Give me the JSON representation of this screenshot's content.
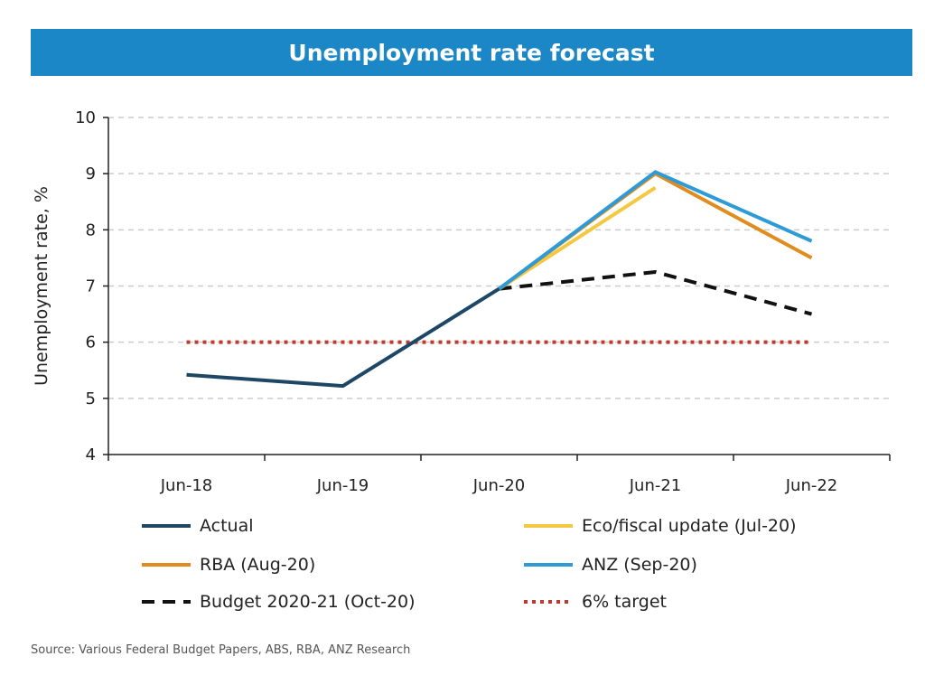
{
  "chart_data": {
    "type": "line",
    "title": "Unemployment rate forecast",
    "xlabel": "",
    "ylabel": "Unemployment  rate, %",
    "categories": [
      "Jun-18",
      "Jun-19",
      "Jun-20",
      "Jun-21",
      "Jun-22"
    ],
    "ylim": [
      4,
      10
    ],
    "yticks": [
      4,
      5,
      6,
      7,
      8,
      9,
      10
    ],
    "grid": true,
    "legend_position": "bottom",
    "series": [
      {
        "name": "Actual",
        "color": "#1e4766",
        "style": "solid",
        "points": [
          {
            "x": "Jun-18",
            "y": 5.42
          },
          {
            "x": "Jun-19",
            "y": 5.22
          },
          {
            "x": "Jun-20",
            "y": 6.95
          }
        ]
      },
      {
        "name": "Eco/fiscal update (Jul-20)",
        "color": "#f5c842",
        "style": "solid",
        "points": [
          {
            "x": "Jun-20",
            "y": 6.95
          },
          {
            "x": "Jun-21",
            "y": 8.75
          }
        ]
      },
      {
        "name": "RBA (Aug-20)",
        "color": "#e08c1e",
        "style": "solid",
        "points": [
          {
            "x": "Jun-20",
            "y": 6.95
          },
          {
            "x": "Jun-21",
            "y": 9.0
          },
          {
            "x": "Jun-22",
            "y": 7.5
          }
        ]
      },
      {
        "name": "ANZ (Sep-20)",
        "color": "#2e9bd6",
        "style": "solid",
        "points": [
          {
            "x": "Jun-20",
            "y": 6.95
          },
          {
            "x": "Jun-21",
            "y": 9.03
          },
          {
            "x": "Jun-22",
            "y": 7.8
          }
        ]
      },
      {
        "name": "Budget 2020-21 (Oct-20)",
        "color": "#111111",
        "style": "dashed",
        "points": [
          {
            "x": "Jun-20",
            "y": 6.95
          },
          {
            "x": "Jun-21",
            "y": 7.25
          },
          {
            "x": "Jun-22",
            "y": 6.5
          }
        ]
      },
      {
        "name": "6% target",
        "color": "#c0392b",
        "style": "dotted",
        "points": [
          {
            "x": "Jun-18",
            "y": 6.0
          },
          {
            "x": "Jun-22",
            "y": 6.0
          }
        ]
      }
    ]
  },
  "source": "Source: Various Federal Budget Papers, ABS, RBA, ANZ Research"
}
